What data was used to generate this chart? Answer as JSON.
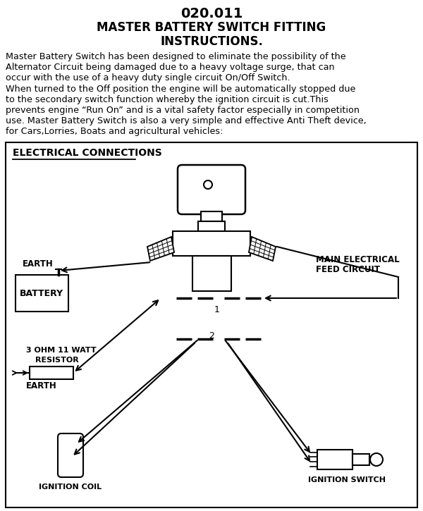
{
  "title_line1": "020.011",
  "title_line2": "MASTER BATTERY SWITCH FITTING",
  "title_line3": "INSTRUCTIONS.",
  "body_lines": [
    "Master Battery Switch has been designed to eliminate the possibility of the",
    "Alternator Circuit being damaged due to a heavy voltage surge, that can",
    "occur with the use of a heavy duty single circuit On/Off Switch.",
    "When turned to the Off position the engine will be automatically stopped due",
    "to the secondary switch function whereby the ignition circuit is cut.This",
    "prevents engine “Run On” and is a vital safety factor especially in competition",
    "use. Master Battery Switch is also a very simple and effective Anti Theft device,",
    "for Cars,Lorries, Boats and agricultural vehicles:"
  ],
  "section_title": "ELECTRICAL CONNECTIONS",
  "label_earth_top": "EARTH",
  "label_battery": "BATTERY",
  "label_main_elec1": "MAIN ELECTRICAL",
  "label_main_elec2": "FEED CIRCUIT",
  "label_resistor1": "3 OHM 11 WATT",
  "label_resistor2": "RESISTOR",
  "label_earth_bot": "EARTH",
  "label_conn1": "1",
  "label_conn2": "2",
  "label_ign_coil": "IGNITION COIL",
  "label_ign_switch": "IGNITION SWITCH",
  "bg_color": "#ffffff",
  "fg_color": "#000000"
}
